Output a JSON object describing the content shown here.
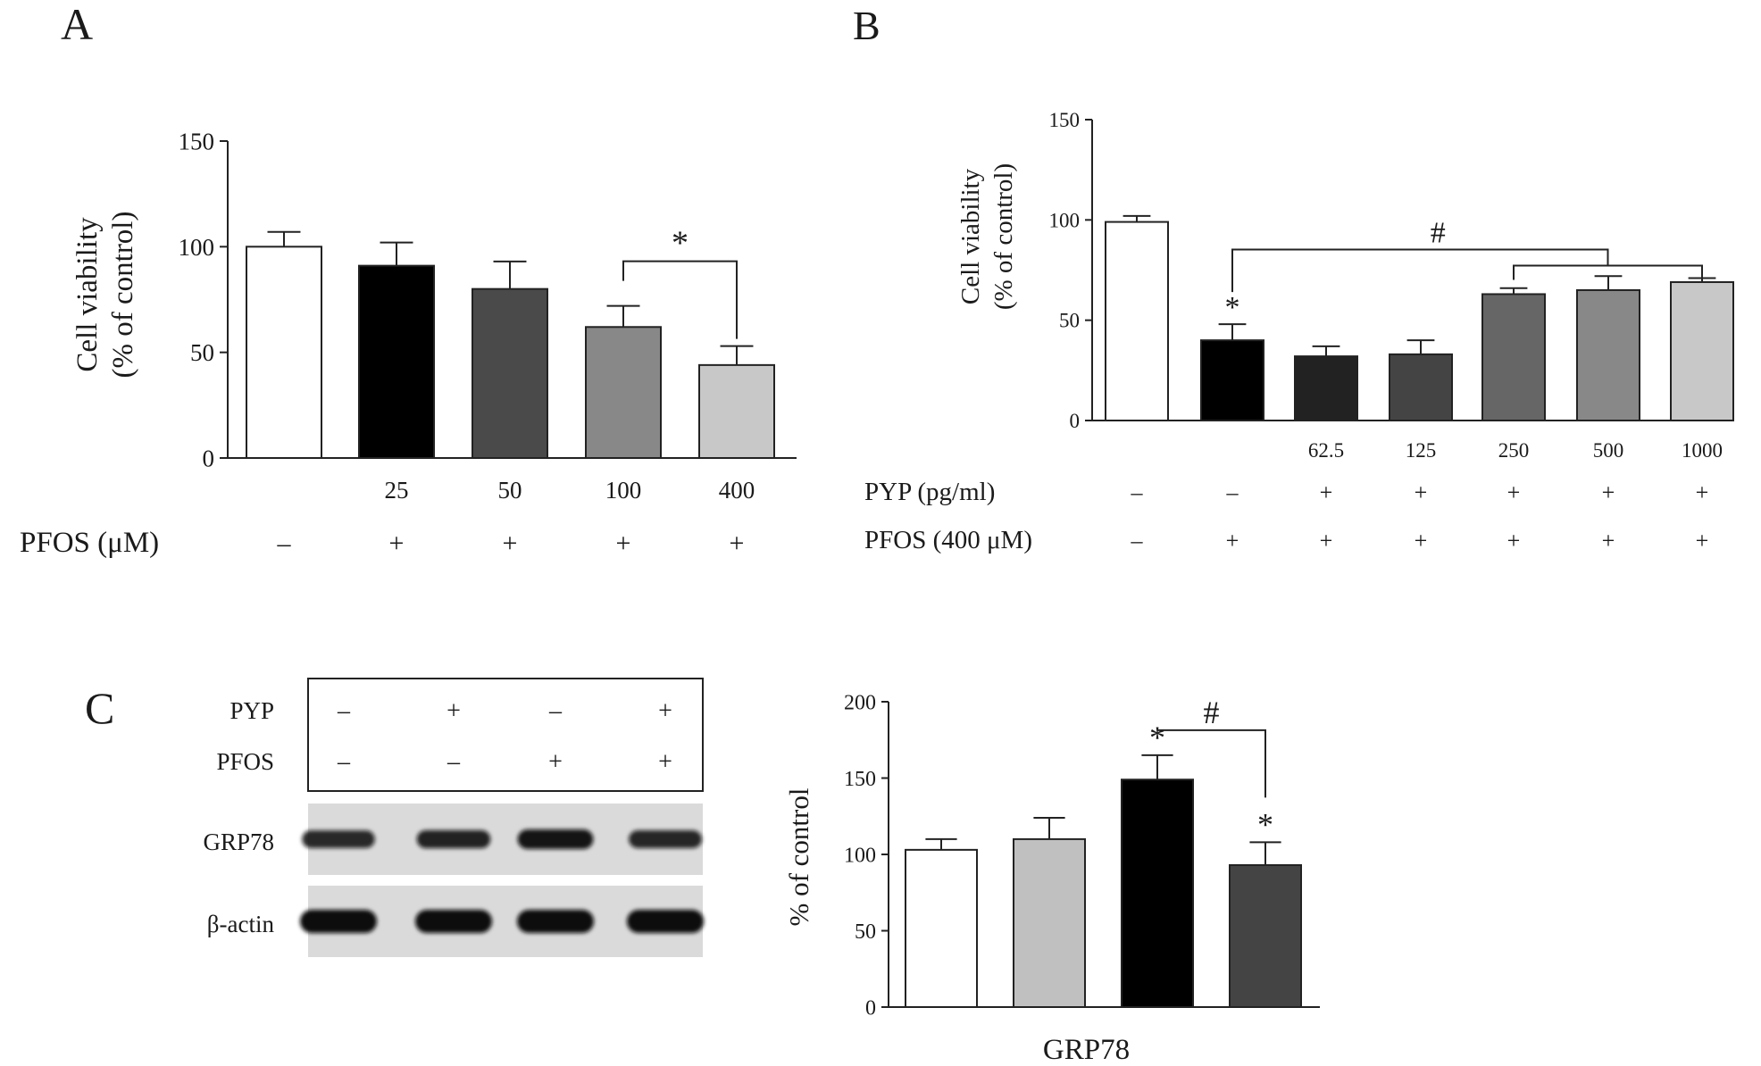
{
  "panels": {
    "A": {
      "label": "A"
    },
    "B": {
      "label": "B"
    },
    "C": {
      "label": "C"
    }
  },
  "chart_data": [
    {
      "id": "A",
      "type": "bar",
      "ylabel": [
        "Cell viability",
        "(% of control)"
      ],
      "ylim": [
        0,
        150
      ],
      "yticks": [
        0,
        50,
        100,
        150
      ],
      "categories": [
        "",
        "25",
        "50",
        "100",
        "400"
      ],
      "values": [
        100,
        91,
        80,
        62,
        44
      ],
      "errors": [
        7,
        11,
        13,
        10,
        9
      ],
      "colors": [
        "#ffffff",
        "#000000",
        "#4a4a4a",
        "#888888",
        "#c8c8c8"
      ],
      "treatments": [
        {
          "name": "PFOS (μM)",
          "signs": [
            "–",
            "+",
            "+",
            "+",
            "+"
          ]
        }
      ],
      "brackets": [
        {
          "from": 3,
          "to": 4,
          "mark": "*"
        }
      ],
      "marks": []
    },
    {
      "id": "B",
      "type": "bar",
      "ylabel": [
        "Cell viability",
        "(% of control)"
      ],
      "ylim": [
        0,
        150
      ],
      "yticks": [
        0,
        50,
        100,
        150
      ],
      "categories": [
        "",
        "",
        "62.5",
        "125",
        "250",
        "500",
        "1000"
      ],
      "values": [
        99,
        40,
        32,
        33,
        63,
        65,
        69
      ],
      "errors": [
        3,
        8,
        5,
        7,
        3,
        7,
        2
      ],
      "colors": [
        "#ffffff",
        "#000000",
        "#222222",
        "#444444",
        "#666666",
        "#888888",
        "#c8c8c8"
      ],
      "treatments": [
        {
          "name": "PYP (pg/ml)",
          "signs": [
            "–",
            "–",
            "+",
            "+",
            "+",
            "+",
            "+"
          ]
        },
        {
          "name": "PFOS (400 μM)",
          "signs": [
            "–",
            "+",
            "+",
            "+",
            "+",
            "+",
            "+"
          ]
        }
      ],
      "brackets": [
        {
          "from": 1,
          "to": 5,
          "sub_from": 4,
          "sub_to": 6,
          "mark": "#"
        }
      ],
      "marks": [
        {
          "bar": 1,
          "mark": "*"
        }
      ]
    },
    {
      "id": "C",
      "type": "bar",
      "ylabel": [
        "% of control"
      ],
      "xlabel": "GRP78",
      "ylim": [
        0,
        200
      ],
      "yticks": [
        0,
        50,
        100,
        150,
        200
      ],
      "categories": [
        "",
        "",
        "",
        ""
      ],
      "values": [
        103,
        110,
        149,
        93
      ],
      "errors": [
        7,
        14,
        16,
        15
      ],
      "colors": [
        "#ffffff",
        "#c0c0c0",
        "#000000",
        "#444444"
      ],
      "treatments": [],
      "brackets": [
        {
          "from": 2,
          "to": 3,
          "mark": "#"
        }
      ],
      "marks": [
        {
          "bar": 2,
          "mark": "*"
        },
        {
          "bar": 3,
          "mark": "*"
        }
      ]
    }
  ],
  "blot": {
    "rows": [
      {
        "name": "PYP",
        "signs": [
          "–",
          "+",
          "–",
          "+"
        ]
      },
      {
        "name": "PFOS",
        "signs": [
          "–",
          "–",
          "+",
          "+"
        ]
      }
    ],
    "bands": [
      {
        "name": "GRP78",
        "intensity": [
          0.72,
          0.78,
          0.92,
          0.74
        ]
      },
      {
        "name": "β-actin",
        "intensity": [
          1.0,
          1.0,
          1.0,
          1.0
        ]
      }
    ]
  }
}
